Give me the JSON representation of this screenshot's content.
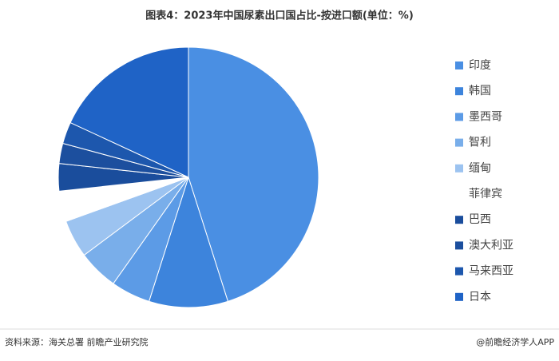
{
  "chart_data": {
    "type": "pie",
    "title": "图表4：2023年中国尿素出口国占比-按进口额(单位：%)",
    "source": "资料来源：海关总署 前瞻产业研究院",
    "brand": "@前瞻经济学人APP",
    "categories": [
      "印度",
      "韩国",
      "墨西哥",
      "智利",
      "缅甸",
      "菲律宾",
      "巴西",
      "澳大利亚",
      "马来西亚",
      "日本"
    ],
    "values": [
      45.1,
      9.8,
      4.9,
      5.0,
      4.7,
      3.8,
      3.4,
      2.5,
      2.7,
      18.1
    ],
    "colors": [
      "#4a8fe3",
      "#3d84dc",
      "#5c9be6",
      "#79aeea",
      "#9cc3f0",
      "#ffffff",
      "#1a4d9c",
      "#1c4f9e",
      "#1d57ad",
      "#1f63c6"
    ]
  }
}
